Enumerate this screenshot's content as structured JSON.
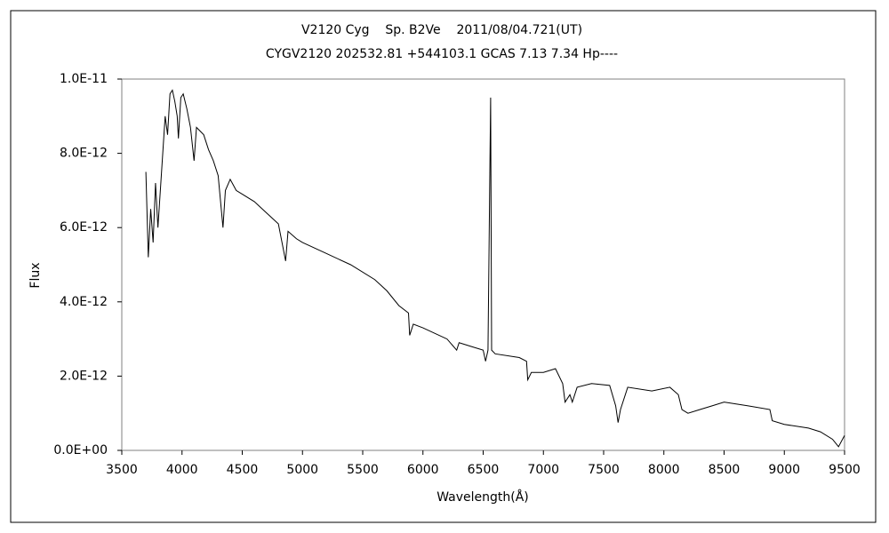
{
  "chart_data": {
    "type": "line",
    "title": "V2120 Cyg    Sp. B2Ve    2011/08/04.721(UT)",
    "subtitle": "CYGV2120 202532.81 +544103.1 GCAS 7.13 7.34 Hp----",
    "x_label": "Wavelength(Å)",
    "y_label": "Flux",
    "xlim": [
      3500,
      9500
    ],
    "xticks": [
      3500,
      4000,
      4500,
      5000,
      5500,
      6000,
      6500,
      7000,
      7500,
      8000,
      8500,
      9000,
      9500
    ],
    "ylim": [
      0,
      1e-11
    ],
    "yticks": [
      {
        "value": 0,
        "label": "0.0E+00"
      },
      {
        "value": 2e-12,
        "label": "2.0E-12"
      },
      {
        "value": 4e-12,
        "label": "4.0E-12"
      },
      {
        "value": 6e-12,
        "label": "6.0E-12"
      },
      {
        "value": 8e-12,
        "label": "8.0E-12"
      },
      {
        "value": 1e-11,
        "label": "1.0E-11"
      }
    ],
    "grid": false,
    "series": [
      {
        "color": "#000000",
        "x": [
          3700,
          3720,
          3740,
          3760,
          3780,
          3800,
          3820,
          3840,
          3860,
          3880,
          3900,
          3920,
          3940,
          3960,
          3970,
          3990,
          4010,
          4040,
          4070,
          4100,
          4120,
          4150,
          4180,
          4220,
          4260,
          4300,
          4340,
          4360,
          4400,
          4450,
          4500,
          4600,
          4700,
          4800,
          4860,
          4880,
          4950,
          5000,
          5200,
          5400,
          5600,
          5700,
          5800,
          5880,
          5890,
          5920,
          6000,
          6200,
          6280,
          6300,
          6400,
          6500,
          6520,
          6540,
          6562,
          6570,
          6600,
          6800,
          6860,
          6870,
          6900,
          7000,
          7100,
          7160,
          7180,
          7220,
          7240,
          7280,
          7400,
          7550,
          7600,
          7620,
          7640,
          7700,
          7900,
          8050,
          8120,
          8150,
          8200,
          8300,
          8400,
          8500,
          8700,
          8880,
          8900,
          9000,
          9200,
          9300,
          9400,
          9450,
          9500
        ],
        "values": [
          7.5e-12,
          5.2e-12,
          6.5e-12,
          5.6e-12,
          7.2e-12,
          6e-12,
          7e-12,
          8e-12,
          9e-12,
          8.5e-12,
          9.6e-12,
          9.7e-12,
          9.4e-12,
          9e-12,
          8.4e-12,
          9.5e-12,
          9.6e-12,
          9.2e-12,
          8.7e-12,
          7.8e-12,
          8.7e-12,
          8.6e-12,
          8.5e-12,
          8.1e-12,
          7.8e-12,
          7.4e-12,
          6e-12,
          7e-12,
          7.3e-12,
          7e-12,
          6.9e-12,
          6.7e-12,
          6.4e-12,
          6.1e-12,
          5.1e-12,
          5.9e-12,
          5.7e-12,
          5.6e-12,
          5.3e-12,
          5e-12,
          4.6e-12,
          4.3e-12,
          3.9e-12,
          3.7e-12,
          3.1e-12,
          3.4e-12,
          3.3e-12,
          3e-12,
          2.7e-12,
          2.9e-12,
          2.8e-12,
          2.7e-12,
          2.4e-12,
          2.7e-12,
          9.5e-12,
          2.7e-12,
          2.6e-12,
          2.5e-12,
          2.4e-12,
          1.9e-12,
          2.1e-12,
          2.1e-12,
          2.2e-12,
          1.8e-12,
          1.3e-12,
          1.5e-12,
          1.3e-12,
          1.7e-12,
          1.8e-12,
          1.75e-12,
          1.2e-12,
          7.5e-13,
          1.1e-12,
          1.7e-12,
          1.6e-12,
          1.7e-12,
          1.5e-12,
          1.1e-12,
          1e-12,
          1.1e-12,
          1.2e-12,
          1.3e-12,
          1.2e-12,
          1.1e-12,
          8e-13,
          7e-13,
          6e-13,
          5e-13,
          3e-13,
          1e-13,
          4e-13
        ]
      }
    ]
  }
}
